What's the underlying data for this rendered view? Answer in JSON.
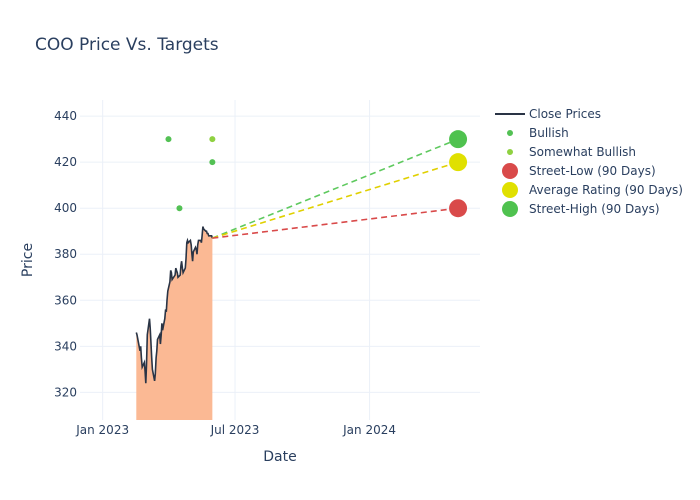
{
  "chart_data": {
    "type": "line",
    "title": "COO Price Vs. Targets",
    "xlabel": "Date",
    "ylabel": "Price",
    "xlim": [
      "2022-12-01",
      "2024-05-31"
    ],
    "ylim": [
      308,
      447
    ],
    "x_ticks": [
      {
        "date": "2023-01-01",
        "label": "Jan 2023"
      },
      {
        "date": "2023-07-01",
        "label": "Jul 2023"
      },
      {
        "date": "2024-01-01",
        "label": "Jan 2024"
      }
    ],
    "y_ticks": [
      320,
      340,
      360,
      380,
      400,
      420,
      440
    ],
    "grid": true,
    "legend_position": "right",
    "colors": {
      "close": "#2a3445",
      "fill": "#fbb994",
      "bullish": "#53c154",
      "somewhat_bullish": "#8fd141",
      "street_low": "#d94a4a",
      "average": "#e0e000",
      "street_high": "#4fc24f"
    },
    "close_prices": {
      "name": "Close Prices",
      "dates": [
        "2023-02-16",
        "2023-02-17",
        "2023-02-21",
        "2023-02-22",
        "2023-02-23",
        "2023-02-24",
        "2023-02-27",
        "2023-02-28",
        "2023-03-01",
        "2023-03-02",
        "2023-03-03",
        "2023-03-06",
        "2023-03-07",
        "2023-03-08",
        "2023-03-09",
        "2023-03-10",
        "2023-03-13",
        "2023-03-14",
        "2023-03-15",
        "2023-03-16",
        "2023-03-17",
        "2023-03-20",
        "2023-03-21",
        "2023-03-22",
        "2023-03-23",
        "2023-03-24",
        "2023-03-27",
        "2023-03-28",
        "2023-03-29",
        "2023-03-30",
        "2023-03-31",
        "2023-04-03",
        "2023-04-04",
        "2023-04-05",
        "2023-04-06",
        "2023-04-10",
        "2023-04-11",
        "2023-04-12",
        "2023-04-13",
        "2023-04-14",
        "2023-04-17",
        "2023-04-18",
        "2023-04-19",
        "2023-04-20",
        "2023-04-21",
        "2023-04-24",
        "2023-04-25",
        "2023-04-26",
        "2023-04-27",
        "2023-04-28",
        "2023-05-01",
        "2023-05-02",
        "2023-05-03",
        "2023-05-04",
        "2023-05-05",
        "2023-05-08",
        "2023-05-09",
        "2023-05-10",
        "2023-05-11",
        "2023-05-12",
        "2023-05-15",
        "2023-05-16",
        "2023-05-17",
        "2023-05-18",
        "2023-05-19",
        "2023-05-22",
        "2023-05-23",
        "2023-05-24",
        "2023-05-25",
        "2023-05-26",
        "2023-05-30",
        "2023-05-31"
      ],
      "values": [
        346,
        345,
        338,
        340,
        335,
        331,
        333,
        329,
        324,
        332,
        345,
        352,
        348,
        342,
        335,
        330,
        325,
        328,
        335,
        338,
        343,
        345,
        341,
        345,
        350,
        347,
        352,
        356,
        355,
        360,
        364,
        368,
        373,
        372,
        369,
        371,
        374,
        373,
        372,
        370,
        371,
        375,
        377,
        374,
        372,
        374,
        378,
        385,
        386,
        385,
        386,
        384,
        380,
        377,
        381,
        383,
        382,
        380,
        384,
        386,
        386,
        385,
        388,
        392,
        391,
        390,
        390,
        389,
        389,
        388,
        388,
        387
      ]
    },
    "projections": [
      {
        "name": "Street-High",
        "from_date": "2023-05-31",
        "from_value": 387,
        "to_date": "2024-05-01",
        "to_value": 430,
        "color": "#5ec95e"
      },
      {
        "name": "Average Rating",
        "from_date": "2023-05-31",
        "from_value": 387,
        "to_date": "2024-05-01",
        "to_value": 420,
        "color": "#e0d000"
      },
      {
        "name": "Street-Low",
        "from_date": "2023-05-31",
        "from_value": 387,
        "to_date": "2024-05-01",
        "to_value": 400,
        "color": "#d94a4a"
      }
    ],
    "bullish": {
      "name": "Bullish",
      "points": [
        {
          "date": "2023-04-01",
          "value": 430
        },
        {
          "date": "2023-04-16",
          "value": 400
        },
        {
          "date": "2023-05-31",
          "value": 420
        }
      ]
    },
    "somewhat_bullish": {
      "name": "Somewhat Bullish",
      "points": [
        {
          "date": "2023-05-31",
          "value": 430
        }
      ]
    },
    "targets": [
      {
        "name": "Street-Low (90 Days)",
        "date": "2024-05-01",
        "value": 400,
        "color": "#d94a4a"
      },
      {
        "name": "Average Rating (90 Days)",
        "date": "2024-05-01",
        "value": 420,
        "color": "#e0e000"
      },
      {
        "name": "Street-High (90 Days)",
        "date": "2024-05-01",
        "value": 430,
        "color": "#4fc24f"
      }
    ],
    "legend": [
      "Close Prices",
      "Bullish",
      "Somewhat Bullish",
      "Street-Low (90 Days)",
      "Average Rating (90 Days)",
      "Street-High (90 Days)"
    ]
  }
}
